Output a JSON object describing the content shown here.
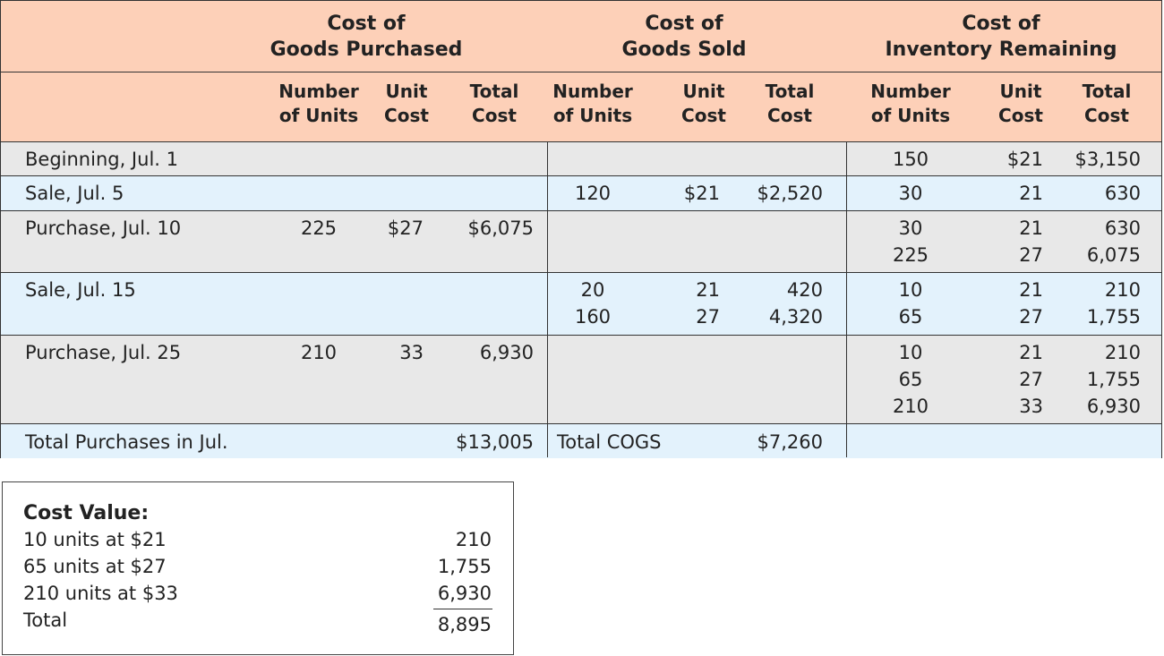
{
  "colors": {
    "header": "#fdd0b8",
    "row_gray": "#e8e8e8",
    "row_blue": "#e3f2fc"
  },
  "header": {
    "groups": [
      {
        "line1": "Cost of",
        "line2": "Goods Purchased"
      },
      {
        "line1": "Cost of",
        "line2": "Goods Sold"
      },
      {
        "line1": "Cost of",
        "line2": "Inventory Remaining"
      }
    ],
    "subheaders": [
      {
        "line1": "Number",
        "line2": "of Units"
      },
      {
        "line1": "Unit",
        "line2": "Cost"
      },
      {
        "line1": "Total",
        "line2": "Cost"
      },
      {
        "line1": "Number",
        "line2": "of Units"
      },
      {
        "line1": "Unit",
        "line2": "Cost"
      },
      {
        "line1": "Total",
        "line2": "Cost"
      },
      {
        "line1": "Number",
        "line2": "of Units"
      },
      {
        "line1": "Unit",
        "line2": "Cost"
      },
      {
        "line1": "Total",
        "line2": "Cost"
      }
    ]
  },
  "rows": [
    {
      "label": "Beginning, Jul. 1",
      "purchased": {
        "units": [],
        "unit_cost": [],
        "total": []
      },
      "sold": {
        "units": [],
        "unit_cost": [],
        "total": []
      },
      "remaining": {
        "units": [
          "150"
        ],
        "unit_cost": [
          "$21"
        ],
        "total": [
          "$3,150"
        ]
      }
    },
    {
      "label": "Sale, Jul. 5",
      "purchased": {
        "units": [],
        "unit_cost": [],
        "total": []
      },
      "sold": {
        "units": [
          "120"
        ],
        "unit_cost": [
          "$21"
        ],
        "total": [
          "$2,520"
        ]
      },
      "remaining": {
        "units": [
          "30"
        ],
        "unit_cost": [
          "21"
        ],
        "total": [
          "630"
        ]
      }
    },
    {
      "label": "Purchase, Jul. 10",
      "purchased": {
        "units": [
          "225"
        ],
        "unit_cost": [
          "$27"
        ],
        "total": [
          "$6,075"
        ]
      },
      "sold": {
        "units": [],
        "unit_cost": [],
        "total": []
      },
      "remaining": {
        "units": [
          "30",
          "225"
        ],
        "unit_cost": [
          "21",
          "27"
        ],
        "total": [
          "630",
          "6,075"
        ]
      }
    },
    {
      "label": "Sale, Jul. 15",
      "purchased": {
        "units": [],
        "unit_cost": [],
        "total": []
      },
      "sold": {
        "units": [
          "20",
          "160"
        ],
        "unit_cost": [
          "21",
          "27"
        ],
        "total": [
          "420",
          "4,320"
        ]
      },
      "remaining": {
        "units": [
          "10",
          "65"
        ],
        "unit_cost": [
          "21",
          "27"
        ],
        "total": [
          "210",
          "1,755"
        ]
      }
    },
    {
      "label": "Purchase, Jul. 25",
      "purchased": {
        "units": [
          "210"
        ],
        "unit_cost": [
          "33"
        ],
        "total": [
          "6,930"
        ]
      },
      "sold": {
        "units": [],
        "unit_cost": [],
        "total": []
      },
      "remaining": {
        "units": [
          "10",
          "65",
          "210"
        ],
        "unit_cost": [
          "21",
          "27",
          "33"
        ],
        "total": [
          "210",
          "1,755",
          "6,930"
        ]
      }
    }
  ],
  "totals": {
    "purchases_label": "Total Purchases in Jul.",
    "purchases_value": "$13,005",
    "cogs_label": "Total COGS",
    "cogs_value": "$7,260"
  },
  "cost_value": {
    "title": "Cost Value:",
    "items": [
      {
        "label": "10 units at $21",
        "value": "210"
      },
      {
        "label": "65 units at $27",
        "value": "1,755"
      },
      {
        "label": "210 units at $33",
        "value": "6,930"
      }
    ],
    "total_label": "Total",
    "total_value": "8,895"
  }
}
